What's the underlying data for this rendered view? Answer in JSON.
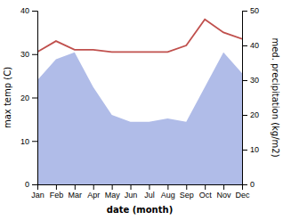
{
  "chart_data": {
    "type": "line",
    "xlabel": "date (month)",
    "ylabel": "max temp (C)",
    "y2label": "med. precipitation (kg/m2)",
    "categories": [
      "Jan",
      "Feb",
      "Mar",
      "Apr",
      "May",
      "Jun",
      "Jul",
      "Aug",
      "Sep",
      "Oct",
      "Nov",
      "Dec"
    ],
    "series": [
      {
        "type": "area",
        "axis": "y2",
        "color": "#b0bce8",
        "values": [
          30,
          36,
          38,
          28,
          20,
          18,
          18,
          19,
          18,
          28,
          38,
          32
        ]
      },
      {
        "type": "line",
        "color": "#c0504d",
        "values": [
          30.5,
          33.0,
          31.0,
          31.0,
          30.5,
          30.5,
          30.5,
          30.5,
          32.0,
          38.0,
          35.0,
          33.5
        ]
      }
    ],
    "ylim": [
      0,
      40
    ],
    "yticks": [
      0,
      10,
      20,
      30,
      40
    ],
    "y2lim": [
      0,
      50
    ],
    "y2ticks": [
      0,
      10,
      20,
      30,
      40,
      50
    ]
  }
}
